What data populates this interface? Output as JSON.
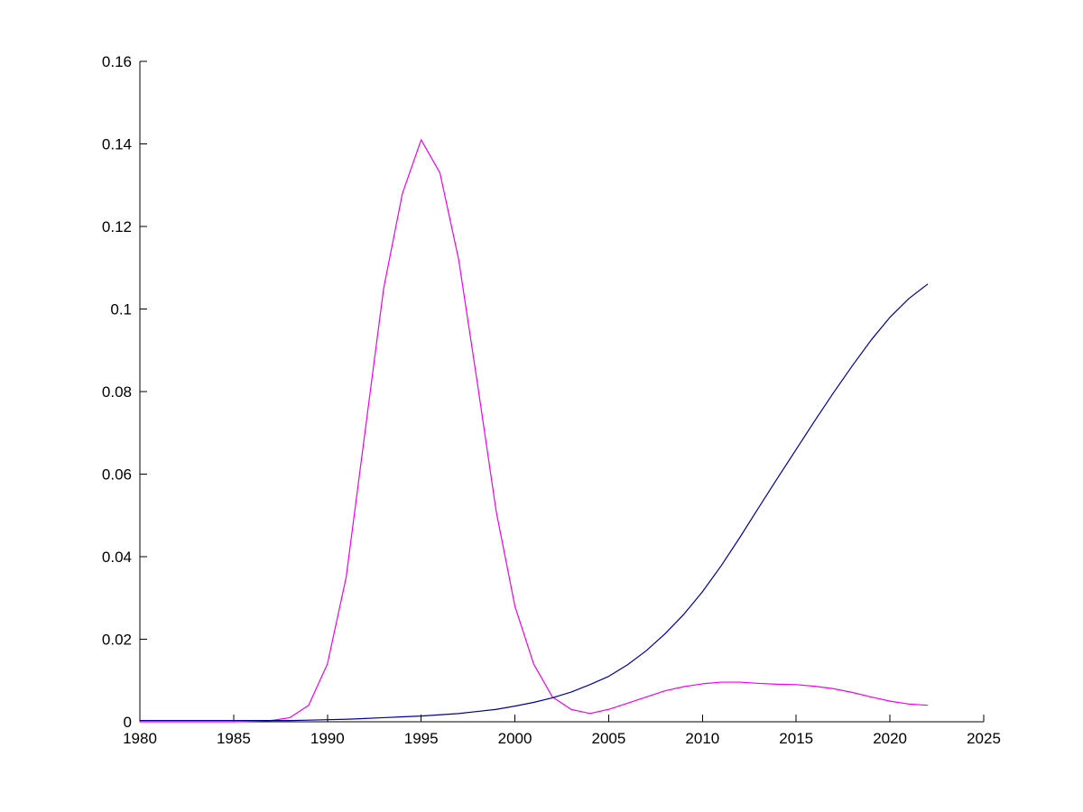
{
  "figure": {
    "background": "#ffffff",
    "axis_color": "#000000"
  },
  "chart_data": {
    "type": "line",
    "title": "",
    "xlabel": "",
    "ylabel": "",
    "xlim": [
      1980,
      2025
    ],
    "ylim": [
      0,
      0.16
    ],
    "grid": false,
    "legend": "none",
    "x_ticks": [
      1980,
      1985,
      1990,
      1995,
      2000,
      2005,
      2010,
      2015,
      2020,
      2025
    ],
    "x_tick_labels": [
      "1980",
      "1985",
      "1990",
      "1995",
      "2000",
      "2005",
      "2010",
      "2015",
      "2020",
      "2025"
    ],
    "y_ticks": [
      0,
      0.02,
      0.04,
      0.06,
      0.08,
      0.1,
      0.12,
      0.14,
      0.16
    ],
    "y_tick_labels": [
      "0",
      "0.02",
      "0.04",
      "0.06",
      "0.08",
      "0.1",
      "0.12",
      "0.14",
      "0.16"
    ],
    "series": [
      {
        "name": "magenta-series",
        "color": "#ee00ee",
        "x": [
          1980,
          1981,
          1982,
          1983,
          1984,
          1985,
          1986,
          1987,
          1988,
          1989,
          1990,
          1991,
          1992,
          1993,
          1994,
          1995,
          1996,
          1997,
          1998,
          1999,
          2000,
          2001,
          2002,
          2003,
          2004,
          2005,
          2006,
          2007,
          2008,
          2009,
          2010,
          2011,
          2012,
          2013,
          2014,
          2015,
          2016,
          2017,
          2018,
          2019,
          2020,
          2021,
          2022
        ],
        "y": [
          0,
          0,
          0,
          0,
          0,
          0,
          0.0001,
          0.0003,
          0.001,
          0.004,
          0.014,
          0.035,
          0.07,
          0.105,
          0.128,
          0.141,
          0.133,
          0.112,
          0.082,
          0.051,
          0.028,
          0.014,
          0.006,
          0.003,
          0.002,
          0.003,
          0.0045,
          0.006,
          0.0075,
          0.0085,
          0.0092,
          0.0096,
          0.0096,
          0.0093,
          0.0091,
          0.009,
          0.0086,
          0.008,
          0.0071,
          0.006,
          0.005,
          0.0043,
          0.004
        ]
      },
      {
        "name": "blue-series",
        "color": "#000099",
        "x": [
          1980,
          1981,
          1982,
          1983,
          1984,
          1985,
          1986,
          1987,
          1988,
          1989,
          1990,
          1991,
          1992,
          1993,
          1994,
          1995,
          1996,
          1997,
          1998,
          1999,
          2000,
          2001,
          2002,
          2003,
          2004,
          2005,
          2006,
          2007,
          2008,
          2009,
          2010,
          2011,
          2012,
          2013,
          2014,
          2015,
          2016,
          2017,
          2018,
          2019,
          2020,
          2021,
          2022
        ],
        "y": [
          0.0003,
          0.0003,
          0.0003,
          0.0003,
          0.0003,
          0.0003,
          0.0003,
          0.0003,
          0.0003,
          0.0004,
          0.0005,
          0.0006,
          0.0008,
          0.001,
          0.0012,
          0.0014,
          0.0017,
          0.002,
          0.0025,
          0.003,
          0.0038,
          0.0047,
          0.0058,
          0.0072,
          0.009,
          0.011,
          0.0138,
          0.0172,
          0.0213,
          0.026,
          0.0315,
          0.0378,
          0.0447,
          0.0519,
          0.059,
          0.066,
          0.073,
          0.0798,
          0.0863,
          0.0925,
          0.098,
          0.1025,
          0.106
        ]
      }
    ]
  }
}
